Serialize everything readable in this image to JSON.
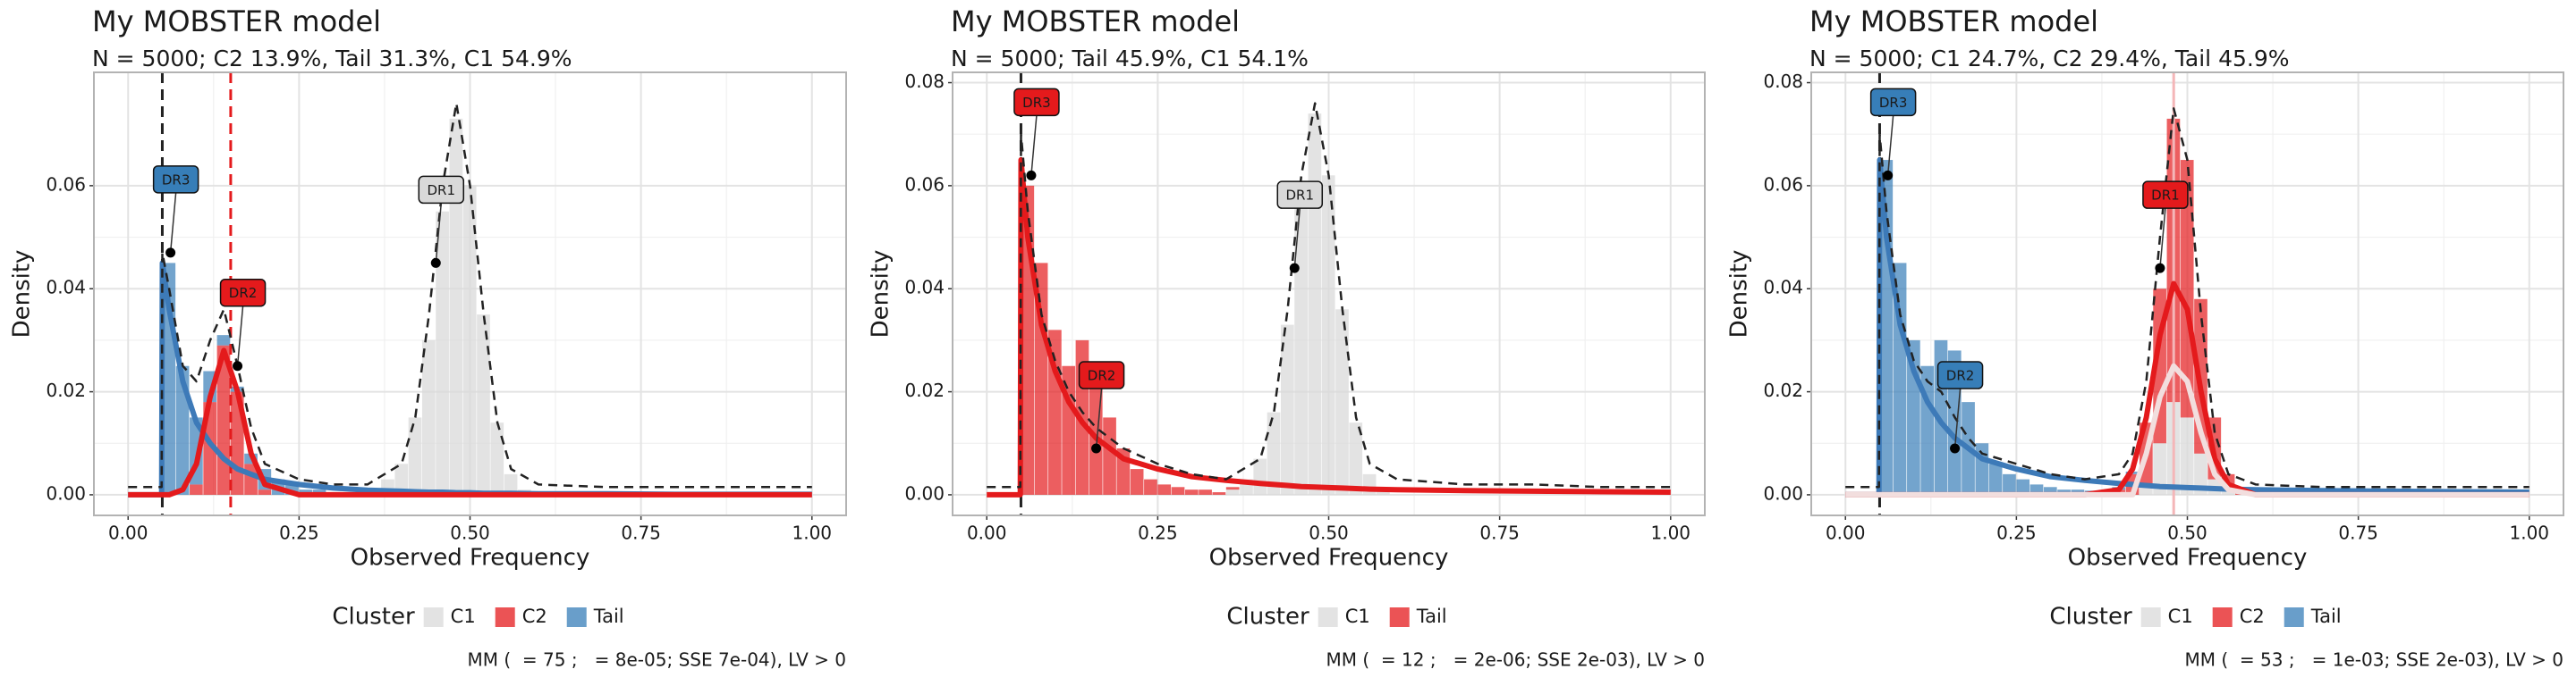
{
  "chart_data": [
    {
      "type": "histogram",
      "title": "My MOBSTER model",
      "subtitle": "N = 5000; C2 13.9%, Tail 31.3%, C1 54.9%",
      "xlabel": "Observed Frequency",
      "ylabel": "Density",
      "xlim": [
        -0.05,
        1.05
      ],
      "ylim": [
        -0.004,
        0.082
      ],
      "xticks": [
        {
          "value": 0,
          "label": "0.00"
        },
        {
          "value": 0.25,
          "label": "0.25"
        },
        {
          "value": 0.5,
          "label": "0.50"
        },
        {
          "value": 0.75,
          "label": "0.75"
        },
        {
          "value": 1,
          "label": "1.00"
        }
      ],
      "yticks": [
        {
          "value": 0,
          "label": "0.00"
        },
        {
          "value": 0.02,
          "label": "0.02"
        },
        {
          "value": 0.04,
          "label": "0.04"
        },
        {
          "value": 0.06,
          "label": "0.06"
        }
      ],
      "grid": true,
      "bins": [
        0.05,
        0.07,
        0.09,
        0.11,
        0.13,
        0.15,
        0.17,
        0.19,
        0.21,
        0.23,
        0.25,
        0.27,
        0.29,
        0.31,
        0.33,
        0.35,
        0.37,
        0.39,
        0.41,
        0.43,
        0.45,
        0.47,
        0.49,
        0.51,
        0.53,
        0.55,
        0.57,
        0.59,
        0.61
      ],
      "series": [
        {
          "name": "C1",
          "color": "#d9d9d9",
          "values": [
            0,
            0,
            0,
            0,
            0,
            0,
            0,
            0,
            0,
            0,
            0,
            0,
            0,
            0,
            0,
            0.001,
            0.003,
            0.006,
            0.015,
            0.03,
            0.055,
            0.073,
            0.06,
            0.035,
            0.014,
            0.004,
            0.001,
            0
          ]
        },
        {
          "name": "C2",
          "color": "#e41a1c",
          "values": [
            0,
            0,
            0.002,
            0.018,
            0.029,
            0.02,
            0.006,
            0.001,
            0,
            0,
            0,
            0,
            0,
            0,
            0,
            0,
            0,
            0,
            0,
            0,
            0,
            0,
            0,
            0,
            0,
            0,
            0,
            0
          ]
        },
        {
          "name": "Tail",
          "color": "#377eb8",
          "values": [
            0.045,
            0.025,
            0.013,
            0.006,
            0.002,
            0.001,
            0.002,
            0.004,
            0.003,
            0.002,
            0.001,
            0.001,
            0,
            0,
            0,
            0,
            0,
            0,
            0,
            0,
            0,
            0,
            0,
            0,
            0,
            0,
            0,
            0
          ]
        }
      ],
      "curves": {
        "x": [
          0,
          0.049,
          0.05,
          0.06,
          0.08,
          0.1,
          0.12,
          0.14,
          0.16,
          0.18,
          0.2,
          0.25,
          0.3,
          0.35,
          0.4,
          0.42,
          0.44,
          0.46,
          0.48,
          0.5,
          0.52,
          0.54,
          0.56,
          0.6,
          0.7,
          0.8,
          0.9,
          1
        ],
        "lines": [
          {
            "color": "#3d7ab8",
            "dash": false,
            "values": [
              0,
              0,
              0.045,
              0.036,
              0.022,
              0.014,
              0.01,
              0.007,
              0.005,
              0.004,
              0.003,
              0.002,
              0.0013,
              0.0009,
              0.0007,
              0.0006,
              0.0005,
              0.0005,
              0.0004,
              0.0004,
              0.0003,
              0.0003,
              0.0003,
              0.0002,
              0.0002,
              0.0001,
              0.0001,
              0.0001
            ]
          },
          {
            "color": "#e41a1c",
            "dash": false,
            "values": [
              0,
              0,
              0,
              0,
              0.001,
              0.006,
              0.019,
              0.028,
              0.02,
              0.008,
              0.002,
              0,
              0,
              0,
              0,
              0,
              0,
              0,
              0,
              0,
              0,
              0,
              0,
              0,
              0,
              0,
              0,
              0
            ]
          },
          {
            "color": "#222222",
            "dash": true,
            "values": [
              0.0015,
              0.0015,
              0.047,
              0.04,
              0.025,
              0.022,
              0.03,
              0.036,
              0.025,
              0.013,
              0.006,
              0.003,
              0.002,
              0.002,
              0.006,
              0.015,
              0.035,
              0.06,
              0.076,
              0.06,
              0.035,
              0.014,
              0.005,
              0.002,
              0.0015,
              0.0015,
              0.0015,
              0.0015
            ]
          }
        ]
      },
      "vlines": [
        {
          "x": 0.05,
          "color": "#222222",
          "dash": true
        },
        {
          "x": 0.15,
          "color": "#e41a1c",
          "dash": true
        }
      ],
      "annotations": [
        {
          "label": "DR3",
          "x": 0.062,
          "y": 0.047,
          "color": "#377eb8"
        },
        {
          "label": "DR2",
          "x": 0.16,
          "y": 0.025,
          "color": "#e41a1c"
        },
        {
          "label": "DR1",
          "x": 0.45,
          "y": 0.045,
          "color": "#d9d9d9"
        }
      ],
      "legend_title": "Cluster",
      "caption": "MM (  = 75 ;   = 8e-05; SSE 7e-04), LV > 0"
    },
    {
      "type": "histogram",
      "title": "My MOBSTER model",
      "subtitle": "N = 5000; Tail 45.9%, C1 54.1%",
      "xlabel": "Observed Frequency",
      "ylabel": "Density",
      "xlim": [
        -0.05,
        1.05
      ],
      "ylim": [
        -0.004,
        0.082
      ],
      "xticks": [
        {
          "value": 0,
          "label": "0.00"
        },
        {
          "value": 0.25,
          "label": "0.25"
        },
        {
          "value": 0.5,
          "label": "0.50"
        },
        {
          "value": 0.75,
          "label": "0.75"
        },
        {
          "value": 1,
          "label": "1.00"
        }
      ],
      "yticks": [
        {
          "value": 0,
          "label": "0.00"
        },
        {
          "value": 0.02,
          "label": "0.02"
        },
        {
          "value": 0.04,
          "label": "0.04"
        },
        {
          "value": 0.06,
          "label": "0.06"
        },
        {
          "value": 0.08,
          "label": "0.08"
        }
      ],
      "grid": true,
      "bins": [
        0.05,
        0.07,
        0.09,
        0.11,
        0.13,
        0.15,
        0.17,
        0.19,
        0.21,
        0.23,
        0.25,
        0.27,
        0.29,
        0.31,
        0.33,
        0.35,
        0.37,
        0.39,
        0.41,
        0.43,
        0.45,
        0.47,
        0.49,
        0.51,
        0.53,
        0.55,
        0.57,
        0.59,
        0.61
      ],
      "series": [
        {
          "name": "C1",
          "color": "#d9d9d9",
          "values": [
            0,
            0,
            0,
            0,
            0,
            0,
            0,
            0,
            0,
            0,
            0,
            0,
            0,
            0,
            0,
            0.001,
            0.003,
            0.007,
            0.016,
            0.033,
            0.058,
            0.074,
            0.062,
            0.036,
            0.014,
            0.004,
            0.001,
            0
          ]
        },
        {
          "name": "Tail",
          "color": "#e41a1c",
          "values": [
            0.06,
            0.045,
            0.032,
            0.025,
            0.03,
            0.025,
            0.015,
            0.009,
            0.005,
            0.003,
            0.002,
            0.0015,
            0.001,
            0.001,
            0.0005,
            0.0005,
            0,
            0,
            0,
            0,
            0,
            0,
            0,
            0,
            0,
            0,
            0,
            0
          ]
        }
      ],
      "curves": {
        "x": [
          0,
          0.049,
          0.05,
          0.06,
          0.08,
          0.1,
          0.12,
          0.14,
          0.16,
          0.18,
          0.2,
          0.25,
          0.3,
          0.35,
          0.4,
          0.42,
          0.44,
          0.46,
          0.48,
          0.5,
          0.52,
          0.54,
          0.56,
          0.6,
          0.7,
          0.8,
          0.9,
          1
        ],
        "lines": [
          {
            "color": "#e41a1c",
            "dash": false,
            "values": [
              0,
              0,
              0.065,
              0.05,
              0.033,
              0.024,
              0.018,
              0.014,
              0.011,
              0.009,
              0.007,
              0.005,
              0.0035,
              0.0028,
              0.0022,
              0.002,
              0.0018,
              0.0016,
              0.0015,
              0.0014,
              0.0013,
              0.0012,
              0.0011,
              0.001,
              0.0008,
              0.0007,
              0.0006,
              0.0005
            ]
          },
          {
            "color": "#222222",
            "dash": true,
            "values": [
              0.0015,
              0.0015,
              0.07,
              0.055,
              0.035,
              0.026,
              0.02,
              0.016,
              0.013,
              0.011,
              0.009,
              0.006,
              0.004,
              0.003,
              0.007,
              0.016,
              0.036,
              0.062,
              0.076,
              0.062,
              0.036,
              0.015,
              0.006,
              0.003,
              0.002,
              0.002,
              0.0015,
              0.0015
            ]
          }
        ]
      },
      "vlines": [
        {
          "x": 0.05,
          "color": "#222222",
          "dash": true
        }
      ],
      "annotations": [
        {
          "label": "DR3",
          "x": 0.065,
          "y": 0.062,
          "color": "#e41a1c"
        },
        {
          "label": "DR2",
          "x": 0.16,
          "y": 0.009,
          "color": "#e41a1c"
        },
        {
          "label": "DR1",
          "x": 0.45,
          "y": 0.044,
          "color": "#d9d9d9"
        }
      ],
      "legend_title": "Cluster",
      "caption": "MM (  = 12 ;   = 2e-06; SSE 2e-03), LV > 0"
    },
    {
      "type": "histogram",
      "title": "My MOBSTER model",
      "subtitle": "N = 5000; C1 24.7%, C2 29.4%, Tail 45.9%",
      "xlabel": "Observed Frequency",
      "ylabel": "Density",
      "xlim": [
        -0.05,
        1.05
      ],
      "ylim": [
        -0.004,
        0.082
      ],
      "xticks": [
        {
          "value": 0,
          "label": "0.00"
        },
        {
          "value": 0.25,
          "label": "0.25"
        },
        {
          "value": 0.5,
          "label": "0.50"
        },
        {
          "value": 0.75,
          "label": "0.75"
        },
        {
          "value": 1,
          "label": "1.00"
        }
      ],
      "yticks": [
        {
          "value": 0,
          "label": "0.00"
        },
        {
          "value": 0.02,
          "label": "0.02"
        },
        {
          "value": 0.04,
          "label": "0.04"
        },
        {
          "value": 0.06,
          "label": "0.06"
        },
        {
          "value": 0.08,
          "label": "0.08"
        }
      ],
      "grid": true,
      "bins": [
        0.05,
        0.07,
        0.09,
        0.11,
        0.13,
        0.15,
        0.17,
        0.19,
        0.21,
        0.23,
        0.25,
        0.27,
        0.29,
        0.31,
        0.33,
        0.35,
        0.37,
        0.39,
        0.41,
        0.43,
        0.45,
        0.47,
        0.49,
        0.51,
        0.53,
        0.55,
        0.57,
        0.59,
        0.61
      ],
      "series": [
        {
          "name": "C1",
          "color": "#d9d9d9",
          "values": [
            0,
            0,
            0,
            0,
            0,
            0,
            0,
            0,
            0,
            0,
            0,
            0,
            0,
            0,
            0,
            0,
            0,
            0,
            0,
            0.002,
            0.01,
            0.018,
            0.015,
            0.008,
            0.003,
            0.001,
            0,
            0
          ]
        },
        {
          "name": "C2",
          "color": "#e41a1c",
          "values": [
            0,
            0,
            0,
            0,
            0,
            0,
            0,
            0,
            0,
            0,
            0,
            0,
            0,
            0,
            0,
            0,
            0,
            0.001,
            0.004,
            0.012,
            0.03,
            0.055,
            0.05,
            0.03,
            0.012,
            0.003,
            0.001,
            0
          ]
        },
        {
          "name": "Tail",
          "color": "#377eb8",
          "values": [
            0.065,
            0.045,
            0.03,
            0.025,
            0.03,
            0.028,
            0.018,
            0.01,
            0.006,
            0.004,
            0.003,
            0.002,
            0.0015,
            0.001,
            0.001,
            0.0008,
            0.0006,
            0.0005,
            0.0005,
            0,
            0,
            0,
            0,
            0,
            0,
            0,
            0,
            0
          ]
        }
      ],
      "curves": {
        "x": [
          0,
          0.049,
          0.05,
          0.06,
          0.08,
          0.1,
          0.12,
          0.14,
          0.16,
          0.18,
          0.2,
          0.25,
          0.3,
          0.35,
          0.4,
          0.42,
          0.44,
          0.46,
          0.48,
          0.5,
          0.52,
          0.54,
          0.56,
          0.6,
          0.7,
          0.8,
          0.9,
          1
        ],
        "lines": [
          {
            "color": "#3d7ab8",
            "dash": false,
            "values": [
              0,
              0,
              0.065,
              0.05,
              0.033,
              0.024,
              0.018,
              0.014,
              0.011,
              0.009,
              0.007,
              0.005,
              0.0035,
              0.0028,
              0.0022,
              0.002,
              0.0018,
              0.0016,
              0.0015,
              0.0014,
              0.0013,
              0.0012,
              0.0011,
              0.001,
              0.0008,
              0.0007,
              0.0006,
              0.0005
            ]
          },
          {
            "color": "#e41a1c",
            "dash": false,
            "values": [
              0,
              0,
              0,
              0,
              0,
              0,
              0,
              0,
              0,
              0,
              0,
              0,
              0,
              0,
              0.001,
              0.005,
              0.015,
              0.031,
              0.041,
              0.036,
              0.02,
              0.007,
              0.002,
              0,
              0,
              0,
              0,
              0
            ]
          },
          {
            "color": "#f2dede",
            "dash": false,
            "values": [
              0,
              0,
              0,
              0,
              0,
              0,
              0,
              0,
              0,
              0,
              0,
              0,
              0,
              0,
              0,
              0,
              0.008,
              0.019,
              0.025,
              0.022,
              0.012,
              0.004,
              0.001,
              0,
              0,
              0,
              0,
              0
            ]
          },
          {
            "color": "#222222",
            "dash": true,
            "values": [
              0.0015,
              0.0015,
              0.07,
              0.055,
              0.035,
              0.026,
              0.022,
              0.02,
              0.015,
              0.011,
              0.008,
              0.006,
              0.004,
              0.003,
              0.004,
              0.008,
              0.022,
              0.05,
              0.075,
              0.065,
              0.035,
              0.012,
              0.004,
              0.002,
              0.0015,
              0.0015,
              0.0015,
              0.0015
            ]
          }
        ]
      },
      "vlines": [
        {
          "x": 0.05,
          "color": "#222222",
          "dash": true
        },
        {
          "x": 0.48,
          "color": "#f4b6b8",
          "dash": false
        }
      ],
      "annotations": [
        {
          "label": "DR3",
          "x": 0.062,
          "y": 0.062,
          "color": "#377eb8"
        },
        {
          "label": "DR2",
          "x": 0.16,
          "y": 0.009,
          "color": "#377eb8"
        },
        {
          "label": "DR1",
          "x": 0.46,
          "y": 0.044,
          "color": "#e41a1c"
        }
      ],
      "legend_title": "Cluster",
      "caption": "MM (  = 53 ;   = 1e-03; SSE 2e-03), LV > 0"
    }
  ]
}
